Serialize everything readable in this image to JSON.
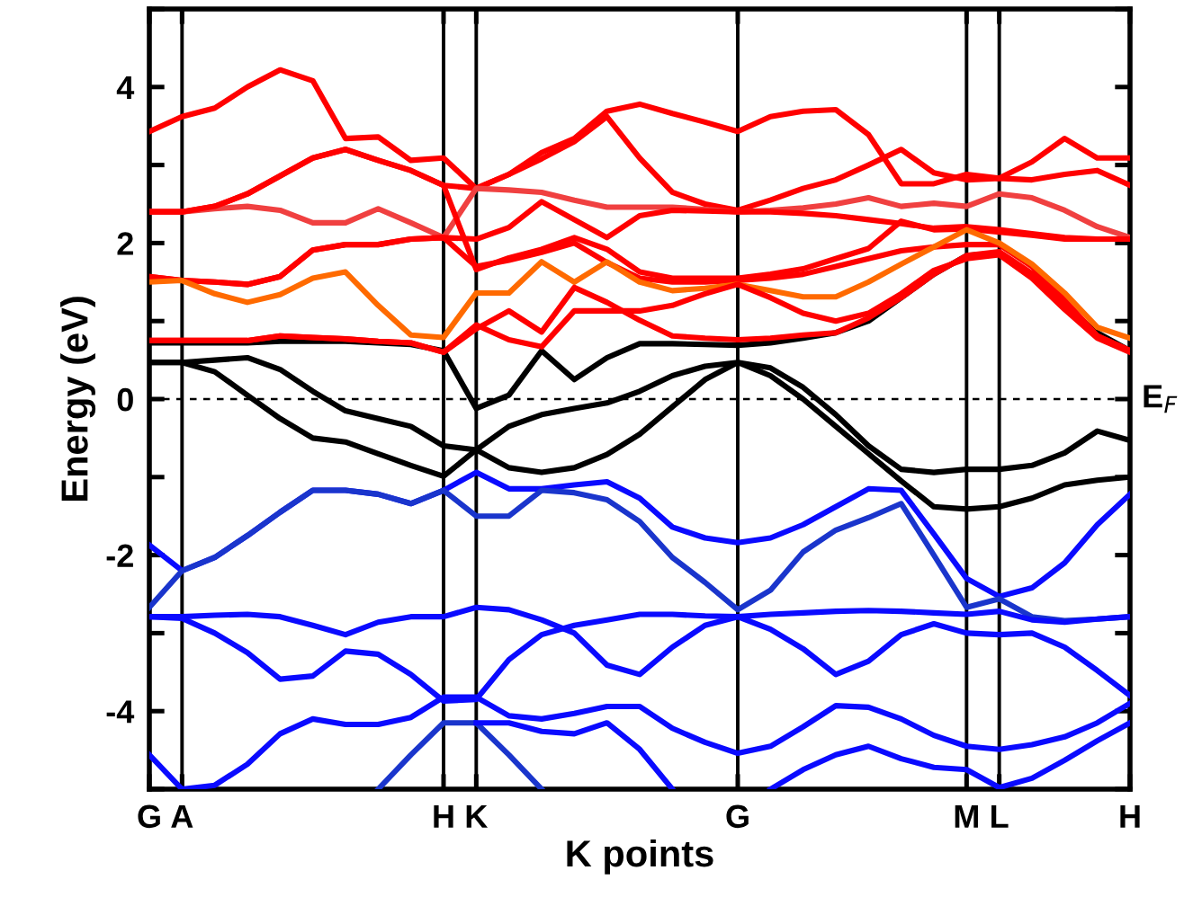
{
  "chart_data": {
    "type": "line",
    "xlabel": "K points",
    "ylabel": "Energy (eV)",
    "categories": [
      "G",
      "A",
      null,
      null,
      null,
      null,
      null,
      null,
      null,
      "H",
      "K",
      null,
      null,
      null,
      null,
      null,
      null,
      null,
      "G",
      null,
      null,
      null,
      null,
      null,
      null,
      "M",
      "L",
      null,
      null,
      null,
      "H"
    ],
    "grid": "x",
    "ylim": [
      -5,
      5
    ],
    "yticks": [
      {
        "value": -5,
        "label": null
      },
      -4,
      {
        "value": -3,
        "label": null
      },
      -2,
      {
        "value": -1,
        "label": null
      },
      0,
      {
        "value": 1,
        "label": null
      },
      2,
      {
        "value": 3,
        "label": null
      },
      4,
      {
        "value": 5,
        "label": null
      }
    ],
    "ref_lines": [
      {
        "axis": "y",
        "value": 0,
        "label": "E$_{F}$",
        "color": "#000000",
        "line_style": "dashed"
      }
    ],
    "series": [
      {
        "color": "#000000",
        "values": [
          0.47,
          0.47,
          0.5,
          0.53,
          0.38,
          0.1,
          -0.15,
          -0.25,
          -0.35,
          -0.6,
          -0.65,
          -0.35,
          -0.2,
          -0.12,
          -0.05,
          0.1,
          0.3,
          0.42,
          0.47,
          0.3,
          0.0,
          -0.35,
          -0.7,
          -1.05,
          -1.38,
          -1.41,
          -1.38,
          -1.27,
          -1.1,
          -1.04,
          -1.0
        ]
      },
      {
        "color": "#000000",
        "values": [
          0.47,
          0.47,
          0.35,
          0.05,
          -0.25,
          -0.5,
          -0.55,
          -0.7,
          -0.85,
          -0.99,
          -0.65,
          -0.88,
          -0.94,
          -0.88,
          -0.71,
          -0.45,
          -0.1,
          0.25,
          0.47,
          0.4,
          0.15,
          -0.2,
          -0.6,
          -0.9,
          -0.94,
          -0.9,
          -0.9,
          -0.85,
          -0.69,
          -0.41,
          -0.53
        ]
      },
      {
        "color": "#000000",
        "values": [
          0.72,
          0.72,
          0.72,
          0.72,
          0.74,
          0.74,
          0.74,
          0.72,
          0.7,
          0.62,
          -0.12,
          0.05,
          0.62,
          0.25,
          0.53,
          0.71,
          0.71,
          0.7,
          0.69,
          0.72,
          0.78,
          0.85,
          1.0,
          1.3,
          1.6,
          1.84,
          1.87,
          1.6,
          1.2,
          0.85,
          0.62
        ]
      },
      {
        "color": "#ff0000",
        "values": [
          3.43,
          3.62,
          3.73,
          4.0,
          4.22,
          4.08,
          3.34,
          3.36,
          3.06,
          3.09,
          2.7,
          2.88,
          3.16,
          3.34,
          3.69,
          3.78,
          3.66,
          3.55,
          3.43,
          3.62,
          3.69,
          3.71,
          3.39,
          2.76,
          2.76,
          2.88,
          2.83,
          3.04,
          3.34,
          3.09,
          3.09
        ]
      },
      {
        "color": "#ff0000",
        "values": [
          2.4,
          2.4,
          2.47,
          2.63,
          2.86,
          3.09,
          3.2,
          3.06,
          2.93,
          2.74,
          2.7,
          2.88,
          3.08,
          3.3,
          3.62,
          3.09,
          2.65,
          2.5,
          2.42,
          2.55,
          2.7,
          2.81,
          3.0,
          3.2,
          2.9,
          2.81,
          2.83,
          2.81,
          2.88,
          2.93,
          2.74
        ]
      },
      {
        "color": "#f04040",
        "values": [
          2.4,
          2.4,
          2.44,
          2.47,
          2.42,
          2.26,
          2.26,
          2.44,
          2.26,
          2.07,
          2.7,
          2.68,
          2.65,
          2.55,
          2.46,
          2.46,
          2.46,
          2.43,
          2.4,
          2.42,
          2.45,
          2.5,
          2.58,
          2.47,
          2.51,
          2.47,
          2.63,
          2.58,
          2.42,
          2.21,
          2.07
        ]
      },
      {
        "color": "#ff0000",
        "values": [
          1.57,
          1.52,
          1.5,
          1.47,
          1.57,
          1.91,
          1.98,
          1.98,
          2.05,
          2.07,
          2.05,
          2.2,
          2.53,
          2.3,
          2.07,
          2.35,
          2.42,
          2.41,
          2.4,
          2.4,
          2.38,
          2.35,
          2.3,
          2.25,
          2.19,
          2.21,
          2.17,
          2.12,
          2.07,
          2.05,
          2.05
        ]
      },
      {
        "color": "#ff0000",
        "values": [
          2.4,
          2.4,
          2.47,
          2.63,
          2.86,
          3.09,
          3.2,
          3.06,
          2.93,
          2.74,
          1.66,
          1.81,
          1.92,
          2.07,
          1.92,
          1.63,
          1.55,
          1.55,
          1.55,
          1.6,
          1.67,
          1.8,
          1.93,
          2.28,
          2.17,
          2.18,
          2.14,
          2.1,
          2.05,
          2.05,
          2.05
        ]
      },
      {
        "color": "#ff0000",
        "values": [
          1.57,
          1.52,
          1.5,
          1.47,
          1.57,
          1.91,
          1.98,
          1.98,
          2.05,
          2.07,
          1.7,
          1.78,
          1.88,
          2.0,
          1.75,
          1.55,
          1.5,
          1.5,
          1.52,
          1.55,
          1.6,
          1.7,
          1.8,
          1.9,
          1.95,
          1.98,
          1.98,
          1.7,
          1.27,
          0.81,
          0.62
        ]
      },
      {
        "color": "#ff6a00",
        "values": [
          1.5,
          1.52,
          1.35,
          1.24,
          1.34,
          1.55,
          1.63,
          1.2,
          0.82,
          0.79,
          1.36,
          1.36,
          1.76,
          1.5,
          1.76,
          1.5,
          1.39,
          1.42,
          1.47,
          1.39,
          1.31,
          1.31,
          1.5,
          1.73,
          1.95,
          2.17,
          2.0,
          1.73,
          1.36,
          0.92,
          0.78
        ]
      },
      {
        "color": "#ff0000",
        "values": [
          0.75,
          0.75,
          0.75,
          0.75,
          0.81,
          0.79,
          0.77,
          0.74,
          0.72,
          0.6,
          0.9,
          1.13,
          0.86,
          1.43,
          1.24,
          1.01,
          0.81,
          0.78,
          0.76,
          0.78,
          0.82,
          0.85,
          1.04,
          1.3,
          1.6,
          1.84,
          1.89,
          1.61,
          1.2,
          0.81,
          0.62
        ]
      },
      {
        "color": "#ff0000",
        "values": [
          0.75,
          0.75,
          0.75,
          0.75,
          0.81,
          0.79,
          0.77,
          0.74,
          0.72,
          0.6,
          0.95,
          0.76,
          0.67,
          1.13,
          1.13,
          1.13,
          1.2,
          1.35,
          1.47,
          1.3,
          1.1,
          1.0,
          1.1,
          1.35,
          1.65,
          1.8,
          1.85,
          1.55,
          1.15,
          0.78,
          0.6
        ]
      },
      {
        "color": "#0a0aff",
        "values": [
          -1.87,
          -2.2,
          -2.03,
          -1.75,
          -1.45,
          -1.17,
          -1.17,
          -1.22,
          -1.34,
          -1.17,
          -0.94,
          -1.15,
          -1.15,
          -1.1,
          -1.06,
          -1.27,
          -1.64,
          -1.78,
          -1.84,
          -1.78,
          -1.61,
          -1.38,
          -1.15,
          -1.17,
          -1.73,
          -2.3,
          -2.53,
          -2.42,
          -2.1,
          -1.61,
          -1.22
        ]
      },
      {
        "color": "#1a35cc",
        "values": [
          -2.67,
          -2.2,
          -2.03,
          -1.75,
          -1.45,
          -1.17,
          -1.17,
          -1.22,
          -1.34,
          -1.17,
          -1.5,
          -1.5,
          -1.17,
          -1.2,
          -1.29,
          -1.57,
          -2.03,
          -2.35,
          -2.7,
          -2.45,
          -1.96,
          -1.68,
          -1.52,
          -1.34,
          -2.0,
          -2.67,
          -2.56,
          -2.79,
          -2.84,
          -2.82,
          -2.79
        ]
      },
      {
        "color": "#0a0aff",
        "values": [
          -2.79,
          -2.79,
          -2.77,
          -2.76,
          -2.79,
          -2.9,
          -3.02,
          -2.86,
          -2.79,
          -2.79,
          -2.67,
          -2.7,
          -2.83,
          -3.0,
          -3.41,
          -3.53,
          -3.18,
          -2.9,
          -2.79,
          -2.76,
          -2.74,
          -2.72,
          -2.71,
          -2.72,
          -2.74,
          -2.76,
          -2.72,
          -2.83,
          -2.86,
          -2.82,
          -2.79
        ]
      },
      {
        "color": "#0a0aff",
        "values": [
          -2.79,
          -2.81,
          -3.0,
          -3.25,
          -3.59,
          -3.55,
          -3.23,
          -3.27,
          -3.53,
          -3.87,
          -3.85,
          -3.34,
          -3.02,
          -2.9,
          -2.83,
          -2.76,
          -2.76,
          -2.78,
          -2.79,
          -2.95,
          -3.2,
          -3.53,
          -3.36,
          -3.02,
          -2.88,
          -3.0,
          -3.02,
          -3.0,
          -3.18,
          -3.48,
          -3.8
        ]
      },
      {
        "color": "#0a0aff",
        "values": [
          -4.56,
          -5.0,
          -4.95,
          -4.68,
          -4.29,
          -4.1,
          -4.17,
          -4.17,
          -4.08,
          -3.82,
          -3.82,
          -4.06,
          -4.1,
          -4.03,
          -3.94,
          -3.94,
          -4.22,
          -4.4,
          -4.54,
          -4.45,
          -4.2,
          -3.93,
          -3.95,
          -4.1,
          -4.31,
          -4.45,
          -4.49,
          -4.43,
          -4.33,
          -4.15,
          -3.9
        ]
      },
      {
        "color": "#1a35cc",
        "values": [
          null,
          null,
          null,
          null,
          null,
          null,
          null,
          -5.0,
          -4.56,
          -4.15,
          -4.15,
          -4.56,
          -5.0,
          null,
          null,
          null,
          null,
          null,
          null,
          null,
          null,
          null,
          null,
          null,
          null,
          null,
          null,
          null,
          null,
          null,
          null
        ]
      },
      {
        "color": "#0a0aff",
        "values": [
          null,
          null,
          null,
          null,
          null,
          null,
          null,
          null,
          null,
          null,
          -4.15,
          -4.15,
          -4.26,
          -4.29,
          -4.15,
          -4.49,
          -5.0,
          null,
          null,
          null,
          null,
          null,
          null,
          null,
          null,
          null,
          null,
          null,
          null,
          null,
          null
        ]
      },
      {
        "color": "#0a0aff",
        "values": [
          null,
          null,
          null,
          null,
          null,
          null,
          null,
          null,
          null,
          null,
          null,
          null,
          null,
          null,
          null,
          null,
          null,
          null,
          null,
          -5.0,
          -4.75,
          -4.56,
          -4.45,
          -4.61,
          -4.72,
          -4.75,
          -4.98,
          -4.86,
          -4.63,
          -4.38,
          -4.15
        ]
      }
    ]
  }
}
